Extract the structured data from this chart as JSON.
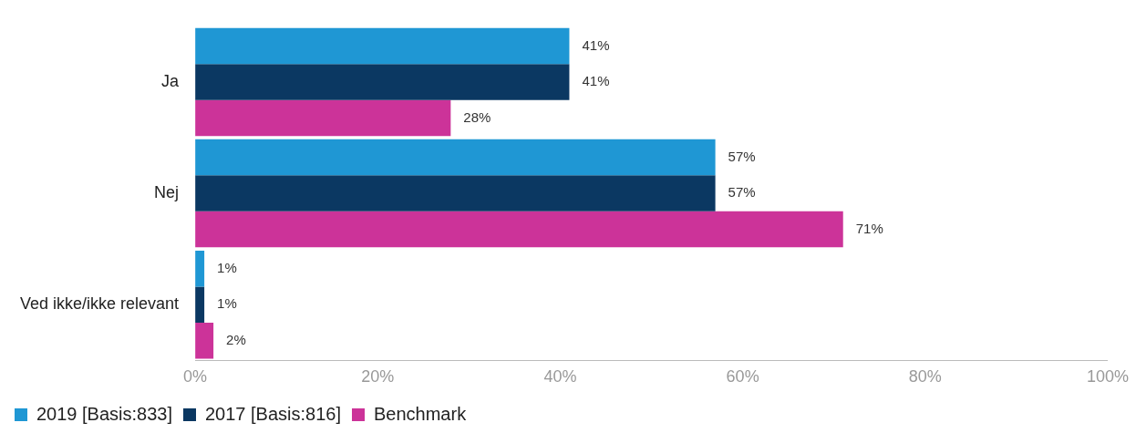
{
  "chart_data": {
    "type": "bar",
    "orientation": "horizontal",
    "categories": [
      "Ja",
      "Nej",
      "Ved ikke/ikke relevant"
    ],
    "series": [
      {
        "name": "2019 [Basis:833]",
        "color": "#1f97d4",
        "values": [
          41,
          57,
          1
        ],
        "value_labels": [
          "41%",
          "57%",
          "1%"
        ]
      },
      {
        "name": "2017 [Basis:816]",
        "color": "#0b3862",
        "values": [
          41,
          57,
          1
        ],
        "value_labels": [
          "41%",
          "57%",
          "1%"
        ]
      },
      {
        "name": "Benchmark",
        "color": "#cc3399",
        "values": [
          28,
          71,
          2
        ],
        "value_labels": [
          "28%",
          "71%",
          "2%"
        ]
      }
    ],
    "xlim": [
      0,
      100
    ],
    "xticks": [
      {
        "value": 0,
        "label": "0%"
      },
      {
        "value": 20,
        "label": "20%"
      },
      {
        "value": 40,
        "label": "40%"
      },
      {
        "value": 60,
        "label": "60%"
      },
      {
        "value": 80,
        "label": "80%"
      },
      {
        "value": 100,
        "label": "100%"
      }
    ],
    "grid": false,
    "legend": "bottom"
  }
}
